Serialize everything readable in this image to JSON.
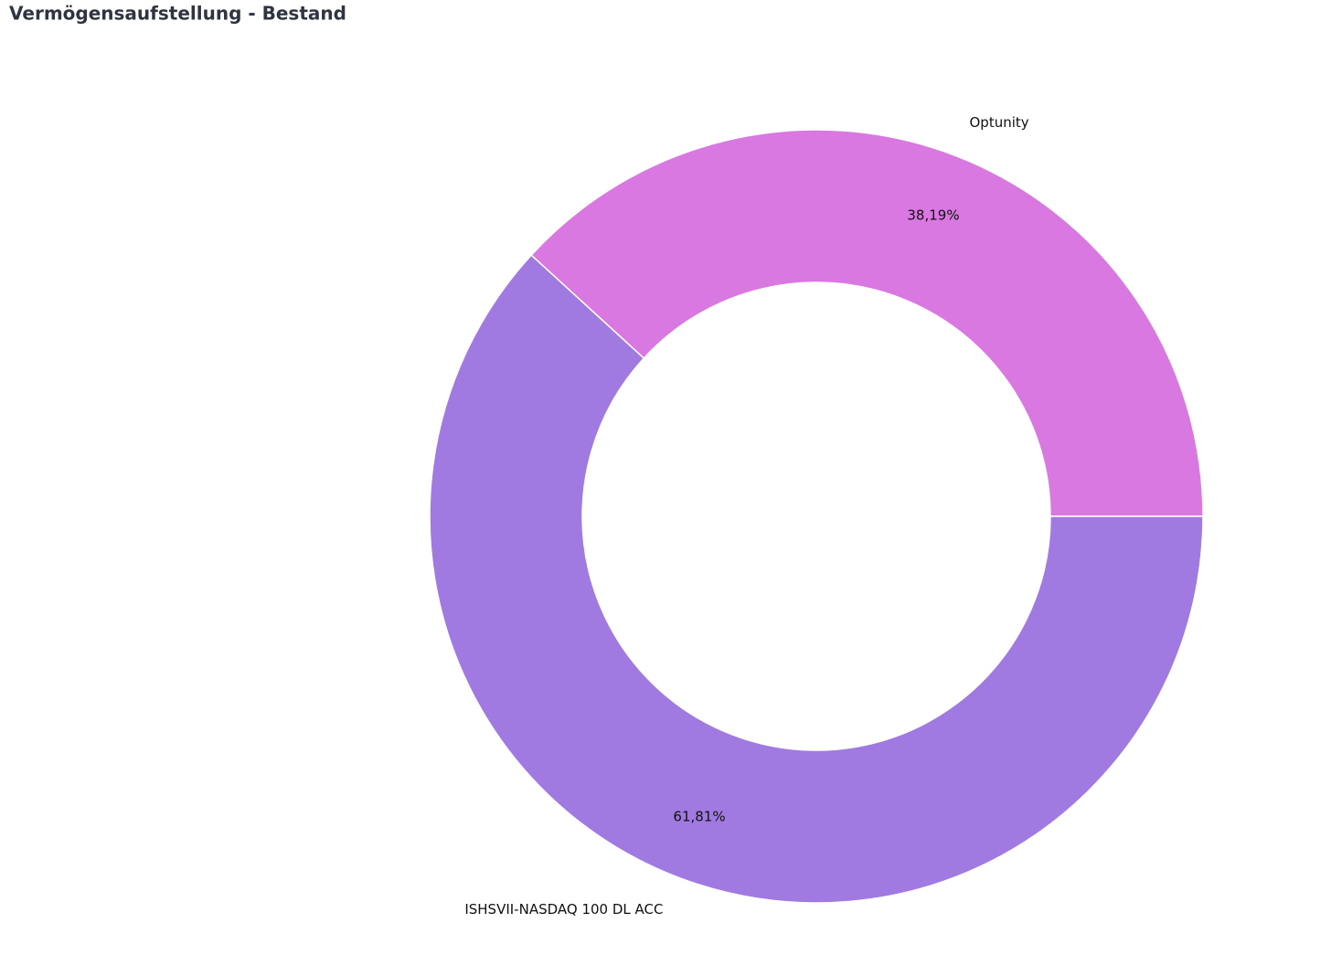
{
  "chart_data": {
    "type": "donut",
    "title": "Vermögensaufstellung - Bestand",
    "categories": [
      "Optunity",
      "ISHSVII-NASDAQ 100 DL ACC"
    ],
    "values": [
      38.19,
      61.81
    ],
    "value_labels": [
      "38,19%",
      "61,81%"
    ],
    "colors": [
      "#d878e0",
      "#a07ae0"
    ]
  }
}
